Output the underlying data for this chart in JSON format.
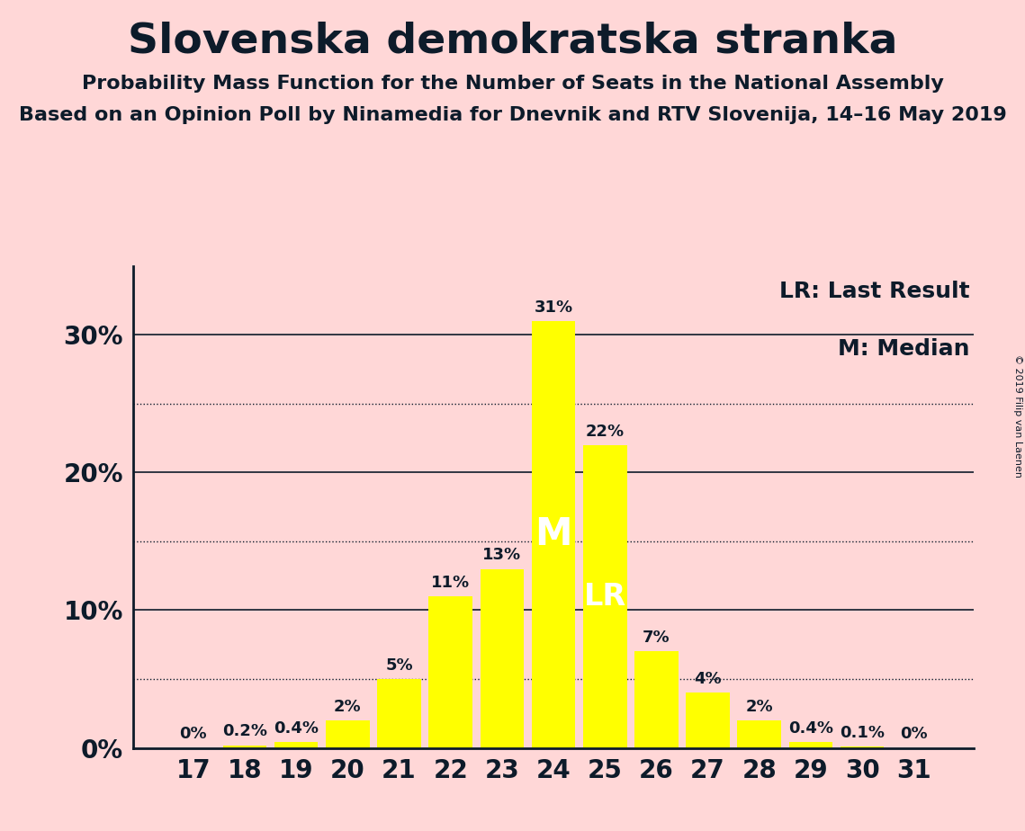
{
  "title": "Slovenska demokratska stranka",
  "subtitle1": "Probability Mass Function for the Number of Seats in the National Assembly",
  "subtitle2": "Based on an Opinion Poll by Ninamedia for Dnevnik and RTV Slovenija, 14–16 May 2019",
  "copyright": "© 2019 Filip van Laenen",
  "categories": [
    17,
    18,
    19,
    20,
    21,
    22,
    23,
    24,
    25,
    26,
    27,
    28,
    29,
    30,
    31
  ],
  "values": [
    0.0,
    0.2,
    0.4,
    2.0,
    5.0,
    11.0,
    13.0,
    31.0,
    22.0,
    7.0,
    4.0,
    2.0,
    0.4,
    0.1,
    0.0
  ],
  "labels": [
    "0%",
    "0.2%",
    "0.4%",
    "2%",
    "5%",
    "11%",
    "13%",
    "31%",
    "22%",
    "7%",
    "4%",
    "2%",
    "0.4%",
    "0.1%",
    "0%"
  ],
  "bar_color": "#FFFF00",
  "background_color": "#FFD7D7",
  "text_color": "#0D1B2A",
  "median_seat": 24,
  "lr_seat": 25,
  "median_label": "M",
  "lr_label": "LR",
  "dotted_lines": [
    5,
    15,
    25
  ],
  "solid_lines": [
    10,
    20,
    30
  ],
  "ylim": [
    0,
    35
  ],
  "legend_lr": "LR: Last Result",
  "legend_m": "M: Median",
  "title_fontsize": 34,
  "subtitle_fontsize": 16,
  "tick_fontsize": 20,
  "label_fontsize": 13,
  "legend_fontsize": 18,
  "copyright_fontsize": 8
}
